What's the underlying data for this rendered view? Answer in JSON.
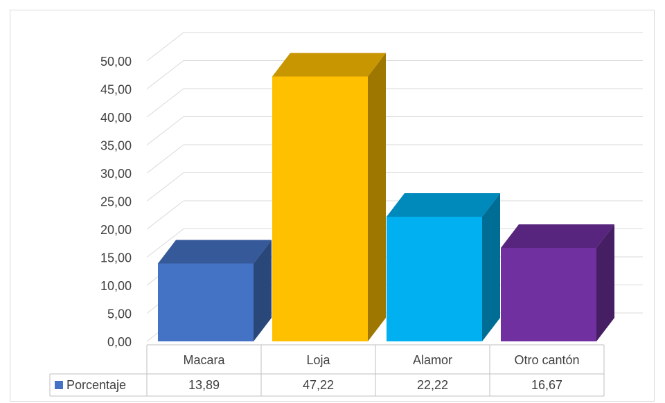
{
  "chart_data": {
    "type": "bar3d",
    "categories": [
      "Macara",
      "Loja",
      "Alamor",
      "Otro cantón"
    ],
    "series": [
      {
        "name": "Porcentaje",
        "values": [
          13.89,
          47.22,
          22.22,
          16.67
        ],
        "value_labels": [
          "13,89",
          "47,22",
          "22,22",
          "16,67"
        ]
      }
    ],
    "colors": [
      "#4472c4",
      "#ffc000",
      "#00b0f0",
      "#7030a0"
    ],
    "ylim": [
      0,
      50
    ],
    "yticks": [
      {
        "value": 0,
        "label": "0,00"
      },
      {
        "value": 5,
        "label": "5,00"
      },
      {
        "value": 10,
        "label": "10,00"
      },
      {
        "value": 15,
        "label": "15,00"
      },
      {
        "value": 20,
        "label": "20,00"
      },
      {
        "value": 25,
        "label": "25,00"
      },
      {
        "value": 30,
        "label": "30,00"
      },
      {
        "value": 35,
        "label": "35,00"
      },
      {
        "value": 40,
        "label": "40,00"
      },
      {
        "value": 45,
        "label": "45,00"
      },
      {
        "value": 50,
        "label": "50,00"
      }
    ],
    "grid": true,
    "data_table": true
  }
}
